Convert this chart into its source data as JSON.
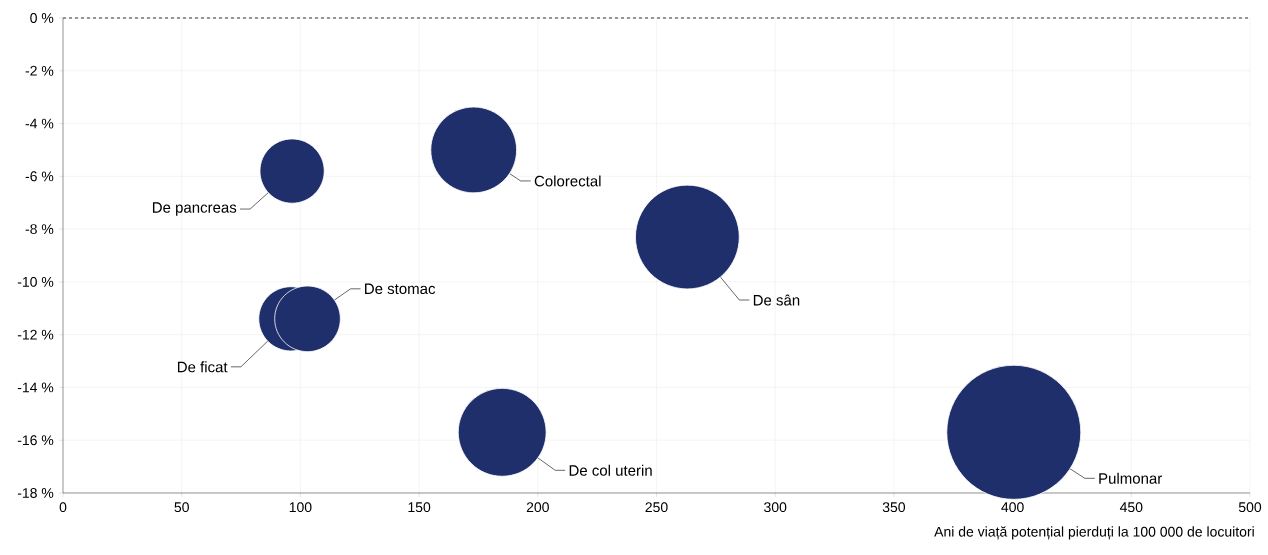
{
  "chart_data": {
    "type": "bubble",
    "xlabel": "Ani de viață potențial pierduți la 100 000 de locuitori",
    "xlim": [
      0,
      500
    ],
    "xticks": [
      0,
      50,
      100,
      150,
      200,
      250,
      300,
      350,
      400,
      450,
      500
    ],
    "ylim": [
      -18,
      0
    ],
    "yticks": [
      {
        "value": -18,
        "label": "-18 %"
      },
      {
        "value": -16,
        "label": "-16 %"
      },
      {
        "value": -14,
        "label": "-14 %"
      },
      {
        "value": -12,
        "label": "-12 %"
      },
      {
        "value": -10,
        "label": "-10 %"
      },
      {
        "value": -8,
        "label": "-8 %"
      },
      {
        "value": -6,
        "label": "-6 %"
      },
      {
        "value": -4,
        "label": "-4 %"
      },
      {
        "value": -2,
        "label": "-2 %"
      },
      {
        "value": 0,
        "label": "0 %"
      }
    ],
    "grid": true,
    "ref_lines": [
      {
        "axis": "y",
        "value": 0,
        "label": null,
        "color": "#333333",
        "line_style": "dashed"
      }
    ],
    "series": [
      {
        "name": "De pancreas",
        "color": "#1f2f6b",
        "x": [
          96.5
        ],
        "values": [
          -5.8
        ],
        "sizes": [
          0.23
        ]
      },
      {
        "name": "Colorectal",
        "color": "#1f2f6b",
        "x": [
          173
        ],
        "values": [
          -5.0
        ],
        "sizes": [
          0.41
        ]
      },
      {
        "name": "De sân",
        "color": "#1f2f6b",
        "x": [
          263
        ],
        "values": [
          -8.3
        ],
        "sizes": [
          0.6
        ]
      },
      {
        "name": "De ficat",
        "color": "#1f2f6b",
        "x": [
          96
        ],
        "values": [
          -11.4
        ],
        "sizes": [
          0.23
        ]
      },
      {
        "name": "De stomac",
        "color": "#1f2f6b",
        "x": [
          103
        ],
        "values": [
          -11.4
        ],
        "sizes": [
          0.24
        ]
      },
      {
        "name": "De col uterin",
        "color": "#1f2f6b",
        "x": [
          185
        ],
        "values": [
          -15.7
        ],
        "sizes": [
          0.43
        ]
      },
      {
        "name": "Pulmonar",
        "color": "#1f2f6b",
        "x": [
          400.5
        ],
        "values": [
          -15.7
        ],
        "sizes": [
          1
        ]
      }
    ]
  }
}
